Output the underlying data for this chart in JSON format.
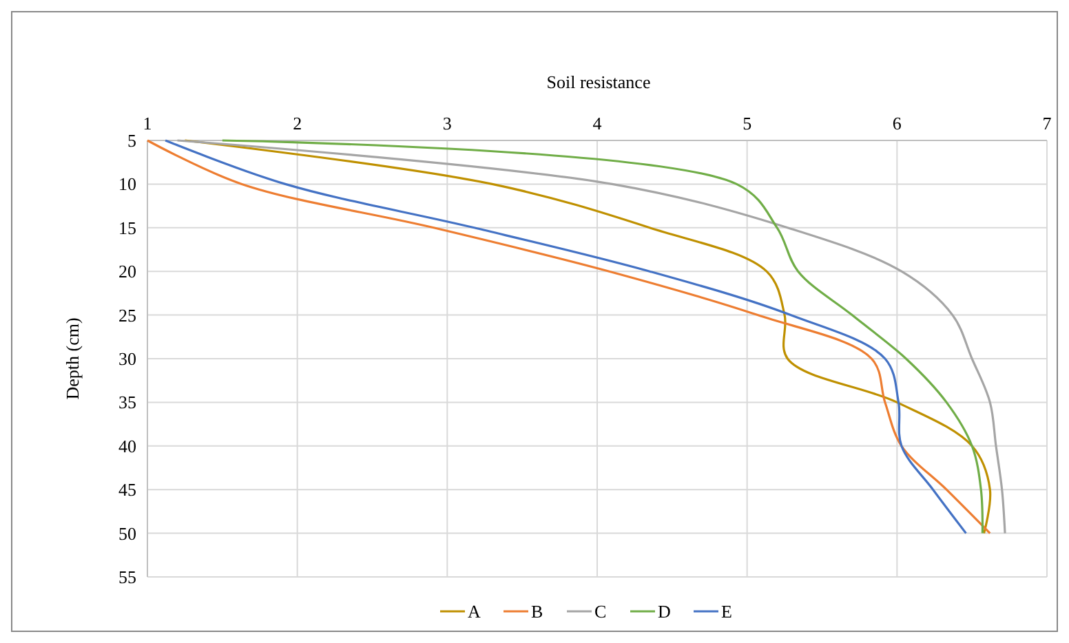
{
  "chart_data": {
    "type": "line",
    "xlabel": "Soil resistance",
    "ylabel": "Depth (cm)",
    "xlim": [
      1,
      7
    ],
    "xticks": [
      1,
      2,
      3,
      4,
      5,
      6,
      7
    ],
    "ylim": [
      55,
      5
    ],
    "yticks": [
      5,
      10,
      15,
      20,
      25,
      30,
      35,
      40,
      45,
      50,
      55
    ],
    "grid": true,
    "legend": "bottom",
    "series": [
      {
        "name": "A",
        "color": "#bf9000",
        "x": [
          1.25,
          3.3,
          4.35,
          5.13,
          5.25,
          5.27,
          6.0,
          6.5,
          6.62,
          6.58
        ],
        "values": [
          5,
          10,
          15,
          20,
          25,
          30,
          35,
          40,
          45,
          50
        ]
      },
      {
        "name": "B",
        "color": "#ed7d31",
        "x": [
          1.0,
          1.63,
          2.91,
          4.08,
          5.07,
          5.83,
          5.92,
          6.03,
          6.33,
          6.62
        ],
        "values": [
          5,
          10,
          15,
          20,
          25,
          30,
          35,
          40,
          45,
          50
        ]
      },
      {
        "name": "C",
        "color": "#a5a5a5",
        "x": [
          1.2,
          4.1,
          5.27,
          6.03,
          6.37,
          6.5,
          6.62,
          6.66,
          6.7,
          6.72
        ],
        "values": [
          5,
          10,
          15,
          20,
          25,
          30,
          35,
          40,
          45,
          50
        ]
      },
      {
        "name": "D",
        "color": "#70ad47",
        "x": [
          1.5,
          4.93,
          5.2,
          5.34,
          5.7,
          6.06,
          6.33,
          6.5,
          6.56,
          6.57
        ],
        "values": [
          5,
          10,
          15,
          20,
          25,
          30,
          35,
          40,
          45,
          50
        ]
      },
      {
        "name": "E",
        "color": "#4472c4",
        "x": [
          1.12,
          1.92,
          3.18,
          4.35,
          5.29,
          5.92,
          6.01,
          6.03,
          6.24,
          6.46
        ],
        "values": [
          5,
          10,
          15,
          20,
          25,
          30,
          35,
          40,
          45,
          50
        ]
      }
    ]
  }
}
